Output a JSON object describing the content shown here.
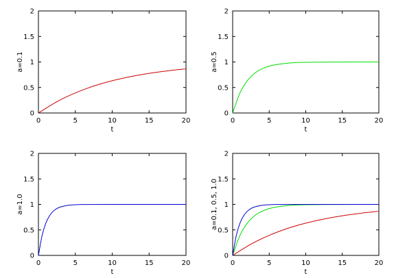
{
  "chart_data": [
    {
      "type": "line",
      "xlabel": "t",
      "ylabel": "a=0.1",
      "xlim": [
        0,
        20
      ],
      "ylim": [
        0,
        2
      ],
      "xticks": [
        "0",
        "5",
        "10",
        "15",
        "20"
      ],
      "yticks": [
        "0",
        "0.5",
        "1",
        "1.5",
        "2"
      ],
      "grid": false,
      "series": [
        {
          "color": "#cc0000",
          "x": [
            0,
            2.5,
            5,
            7.5,
            10,
            12.5,
            15,
            17.5,
            20
          ],
          "y": [
            0,
            0.221,
            0.393,
            0.528,
            0.632,
            0.713,
            0.777,
            0.826,
            0.865
          ]
        }
      ]
    },
    {
      "type": "line",
      "xlabel": "t",
      "ylabel": "a=0.5",
      "xlim": [
        0,
        20
      ],
      "ylim": [
        0,
        2
      ],
      "xticks": [
        "0",
        "5",
        "10",
        "15",
        "20"
      ],
      "yticks": [
        "0",
        "0.5",
        "1",
        "1.5",
        "2"
      ],
      "grid": false,
      "series": [
        {
          "color": "#00dd00",
          "x": [
            0,
            1,
            2,
            3,
            4,
            5,
            6,
            8,
            10,
            15,
            20
          ],
          "y": [
            0,
            0.393,
            0.632,
            0.777,
            0.865,
            0.918,
            0.95,
            0.982,
            0.993,
            0.999,
            1.0
          ]
        }
      ]
    },
    {
      "type": "line",
      "xlabel": "t",
      "ylabel": "a=1.0",
      "xlim": [
        0,
        20
      ],
      "ylim": [
        0,
        2
      ],
      "xticks": [
        "0",
        "5",
        "10",
        "15",
        "20"
      ],
      "yticks": [
        "0",
        "0.5",
        "1",
        "1.5",
        "2"
      ],
      "grid": false,
      "series": [
        {
          "color": "#0000cc",
          "x": [
            0,
            0.5,
            1,
            1.5,
            2,
            2.5,
            3,
            4,
            5,
            6,
            10,
            20
          ],
          "y": [
            0,
            0.393,
            0.632,
            0.777,
            0.865,
            0.918,
            0.95,
            0.982,
            0.993,
            0.998,
            1.0,
            1.0
          ]
        }
      ]
    },
    {
      "type": "line",
      "xlabel": "t",
      "ylabel": "a=0.1, 0.5, 1.0",
      "xlim": [
        0,
        20
      ],
      "ylim": [
        0,
        2
      ],
      "xticks": [
        "0",
        "5",
        "10",
        "15",
        "20"
      ],
      "yticks": [
        "0",
        "0.5",
        "1",
        "1.5",
        "2"
      ],
      "grid": false,
      "series": [
        {
          "color": "#cc0000",
          "x": [
            0,
            2.5,
            5,
            7.5,
            10,
            12.5,
            15,
            17.5,
            20
          ],
          "y": [
            0,
            0.221,
            0.393,
            0.528,
            0.632,
            0.713,
            0.777,
            0.826,
            0.865
          ]
        },
        {
          "color": "#00dd00",
          "x": [
            0,
            1,
            2,
            3,
            4,
            5,
            6,
            8,
            10,
            15,
            20
          ],
          "y": [
            0,
            0.393,
            0.632,
            0.777,
            0.865,
            0.918,
            0.95,
            0.982,
            0.993,
            0.999,
            1.0
          ]
        },
        {
          "color": "#0000cc",
          "x": [
            0,
            0.5,
            1,
            1.5,
            2,
            2.5,
            3,
            4,
            5,
            6,
            10,
            20
          ],
          "y": [
            0,
            0.393,
            0.632,
            0.777,
            0.865,
            0.918,
            0.95,
            0.982,
            0.993,
            0.998,
            1.0,
            1.0
          ]
        }
      ]
    }
  ]
}
